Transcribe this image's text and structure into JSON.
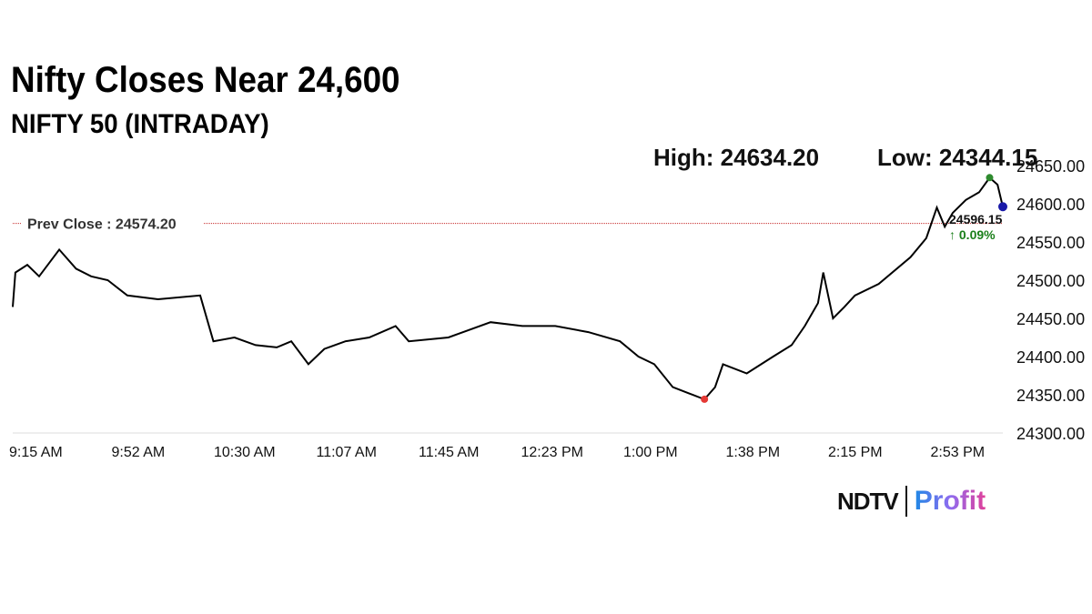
{
  "header": {
    "title": "Nifty Closes Near 24,600",
    "subtitle": "NIFTY 50 (INTRADAY)",
    "high": "High: 24634.20",
    "low": "Low: 24344.15"
  },
  "logo": {
    "ndtv": "NDTV",
    "profit": "Profit"
  },
  "colors": {
    "line": "#000000",
    "prev_close": "#c62828",
    "high_dot": "#2e8b2e",
    "low_dot": "#e53935",
    "last_dot": "#1a1aa8",
    "change": "#1a7f1a"
  },
  "chart_data": {
    "type": "line",
    "title": "NIFTY 50 (INTRADAY)",
    "prev_close_label": "Prev Close : 24574.20",
    "prev_close": 24574.2,
    "last_value_label": "24596.15",
    "change_label": "↑ 0.09%",
    "ylim": [
      24300,
      24650
    ],
    "y_ticks": [
      "24300.00",
      "24350.00",
      "24400.00",
      "24450.00",
      "24500.00",
      "24550.00",
      "24600.00",
      "24650.00"
    ],
    "x_ticks": [
      "9:15 AM",
      "9:52 AM",
      "10:30 AM",
      "11:07 AM",
      "11:45 AM",
      "12:23 PM",
      "1:00 PM",
      "1:38 PM",
      "2:15 PM",
      "2:53 PM"
    ],
    "x_unit": "minutes since 9:15 AM",
    "series": [
      [
        0,
        24465
      ],
      [
        1,
        24510
      ],
      [
        5.5,
        24520
      ],
      [
        10,
        24505
      ],
      [
        17.6,
        24540
      ],
      [
        24,
        24515
      ],
      [
        29.7,
        24505
      ],
      [
        36,
        24500
      ],
      [
        43.4,
        24480
      ],
      [
        55,
        24475
      ],
      [
        71,
        24480
      ],
      [
        76,
        24420
      ],
      [
        84,
        24425
      ],
      [
        92,
        24415
      ],
      [
        100,
        24412
      ],
      [
        105.5,
        24420
      ],
      [
        112,
        24390
      ],
      [
        118,
        24410
      ],
      [
        126,
        24420
      ],
      [
        135,
        24425
      ],
      [
        145,
        24440
      ],
      [
        150,
        24420
      ],
      [
        165,
        24425
      ],
      [
        181,
        24445
      ],
      [
        193,
        24440
      ],
      [
        205.5,
        24440
      ],
      [
        218,
        24432
      ],
      [
        230,
        24420
      ],
      [
        237,
        24400
      ],
      [
        243,
        24390
      ],
      [
        250,
        24360
      ],
      [
        256,
        24352
      ],
      [
        262,
        24344
      ],
      [
        266,
        24360
      ],
      [
        269,
        24390
      ],
      [
        278,
        24378
      ],
      [
        288,
        24400
      ],
      [
        295,
        24415
      ],
      [
        300,
        24440
      ],
      [
        305,
        24470
      ],
      [
        307,
        24510
      ],
      [
        310.7,
        24450
      ],
      [
        315,
        24465
      ],
      [
        319,
        24480
      ],
      [
        328,
        24495
      ],
      [
        340,
        24530
      ],
      [
        346,
        24555
      ],
      [
        350,
        24595
      ],
      [
        353,
        24570
      ],
      [
        356,
        24588
      ],
      [
        361,
        24605
      ],
      [
        366,
        24615
      ],
      [
        370,
        24634
      ],
      [
        373,
        24625
      ],
      [
        375,
        24596
      ]
    ],
    "high": {
      "t": 370,
      "v": 24634.2
    },
    "low": {
      "t": 262,
      "v": 24344.15
    },
    "last": {
      "t": 375,
      "v": 24596.15
    }
  }
}
